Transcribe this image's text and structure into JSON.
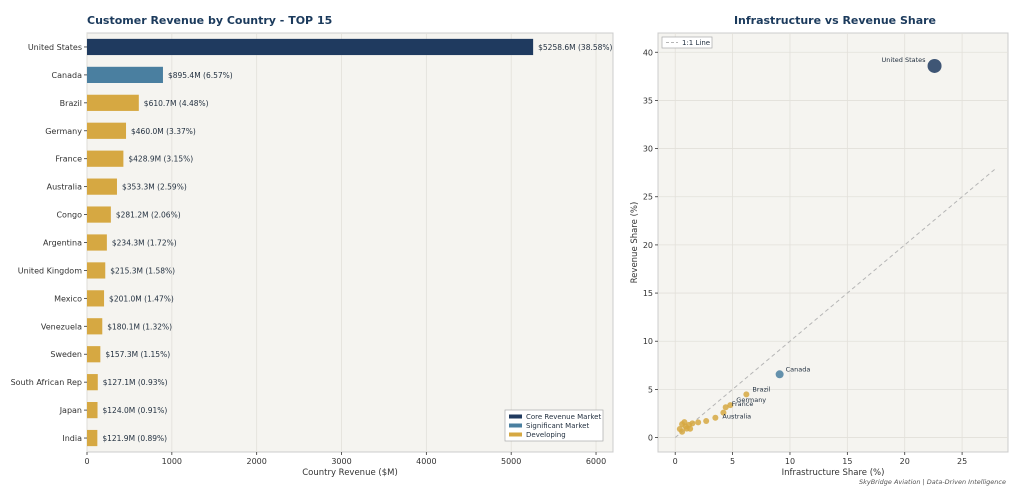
{
  "footer": "SkyBridge Aviation | Data-Driven Intelligence",
  "colors": {
    "core": "#1f3a5f",
    "significant": "#4a7fa0",
    "developing": "#d6a842",
    "panel_bg": "#f5f4f0",
    "grid": "#e2e0da",
    "diag": "#b5b5b5"
  },
  "chart_data": [
    {
      "type": "bar",
      "orientation": "horizontal",
      "title": "Customer Revenue by Country - TOP 15",
      "xlabel": "Country Revenue ($M)",
      "xlim": [
        0,
        6200
      ],
      "xticks": [
        "0",
        "1000",
        "2000",
        "3000",
        "4000",
        "5000",
        "6000"
      ],
      "grid": true,
      "legend_position": "bottom-right",
      "legend": [
        {
          "name": "Core Revenue Market",
          "color_key": "core"
        },
        {
          "name": "Significant Market",
          "color_key": "significant"
        },
        {
          "name": "Developing",
          "color_key": "developing"
        }
      ],
      "categories": [
        "United States",
        "Canada",
        "Brazil",
        "Germany",
        "France",
        "Australia",
        "Congo",
        "Argentina",
        "United Kingdom",
        "Mexico",
        "Venezuela",
        "Sweden",
        "South African Rep",
        "Japan",
        "India"
      ],
      "values": [
        5258.6,
        895.4,
        610.7,
        460.0,
        428.9,
        353.3,
        281.2,
        234.3,
        215.3,
        201.0,
        180.1,
        157.3,
        127.1,
        124.0,
        121.9
      ],
      "labels": [
        "$5258.6M (38.58%)",
        "$895.4M (6.57%)",
        "$610.7M (4.48%)",
        "$460.0M (3.37%)",
        "$428.9M (3.15%)",
        "$353.3M (2.59%)",
        "$281.2M (2.06%)",
        "$234.3M (1.72%)",
        "$215.3M (1.58%)",
        "$201.0M (1.47%)",
        "$180.1M (1.32%)",
        "$157.3M (1.15%)",
        "$127.1M (0.93%)",
        "$124.0M (0.91%)",
        "$121.9M (0.89%)"
      ],
      "tiers": [
        "core",
        "significant",
        "developing",
        "developing",
        "developing",
        "developing",
        "developing",
        "developing",
        "developing",
        "developing",
        "developing",
        "developing",
        "developing",
        "developing",
        "developing"
      ]
    },
    {
      "type": "scatter",
      "title": "Infrastructure vs Revenue Share",
      "xlabel": "Infrastructure Share (%)",
      "ylabel": "Revenue Share (%)",
      "xlim": [
        -1.5,
        29
      ],
      "ylim": [
        -1.5,
        42
      ],
      "xticks": [
        0,
        5,
        10,
        15,
        20,
        25
      ],
      "yticks": [
        0,
        5,
        10,
        15,
        20,
        25,
        30,
        35,
        40
      ],
      "grid": true,
      "legend_position": "top-left",
      "legend": [
        {
          "name": "1:1 Line"
        }
      ],
      "diagonal": [
        0,
        28
      ],
      "points": [
        {
          "x": 22.6,
          "y": 38.58,
          "tier": "core",
          "label": "United States"
        },
        {
          "x": 9.1,
          "y": 6.57,
          "tier": "significant",
          "label": "Canada"
        },
        {
          "x": 6.2,
          "y": 4.48,
          "tier": "developing",
          "label": "Brazil"
        },
        {
          "x": 4.8,
          "y": 3.37,
          "tier": "developing",
          "label": "Germany"
        },
        {
          "x": 4.4,
          "y": 3.15,
          "tier": "developing",
          "label": "France"
        },
        {
          "x": 4.2,
          "y": 2.59,
          "tier": "developing",
          "label": "Australia"
        },
        {
          "x": 3.5,
          "y": 2.06,
          "tier": "developing",
          "label": ""
        },
        {
          "x": 2.7,
          "y": 1.72,
          "tier": "developing",
          "label": ""
        },
        {
          "x": 2.0,
          "y": 1.58,
          "tier": "developing",
          "label": ""
        },
        {
          "x": 1.5,
          "y": 1.47,
          "tier": "developing",
          "label": ""
        },
        {
          "x": 1.2,
          "y": 1.32,
          "tier": "developing",
          "label": ""
        },
        {
          "x": 0.9,
          "y": 1.15,
          "tier": "developing",
          "label": ""
        },
        {
          "x": 0.8,
          "y": 1.6,
          "tier": "developing",
          "label": ""
        },
        {
          "x": 0.6,
          "y": 1.4,
          "tier": "developing",
          "label": ""
        },
        {
          "x": 0.6,
          "y": 0.6,
          "tier": "developing",
          "label": ""
        },
        {
          "x": 1.0,
          "y": 0.93,
          "tier": "developing",
          "label": ""
        },
        {
          "x": 1.3,
          "y": 0.91,
          "tier": "developing",
          "label": ""
        },
        {
          "x": 0.4,
          "y": 0.89,
          "tier": "developing",
          "label": ""
        }
      ]
    }
  ]
}
